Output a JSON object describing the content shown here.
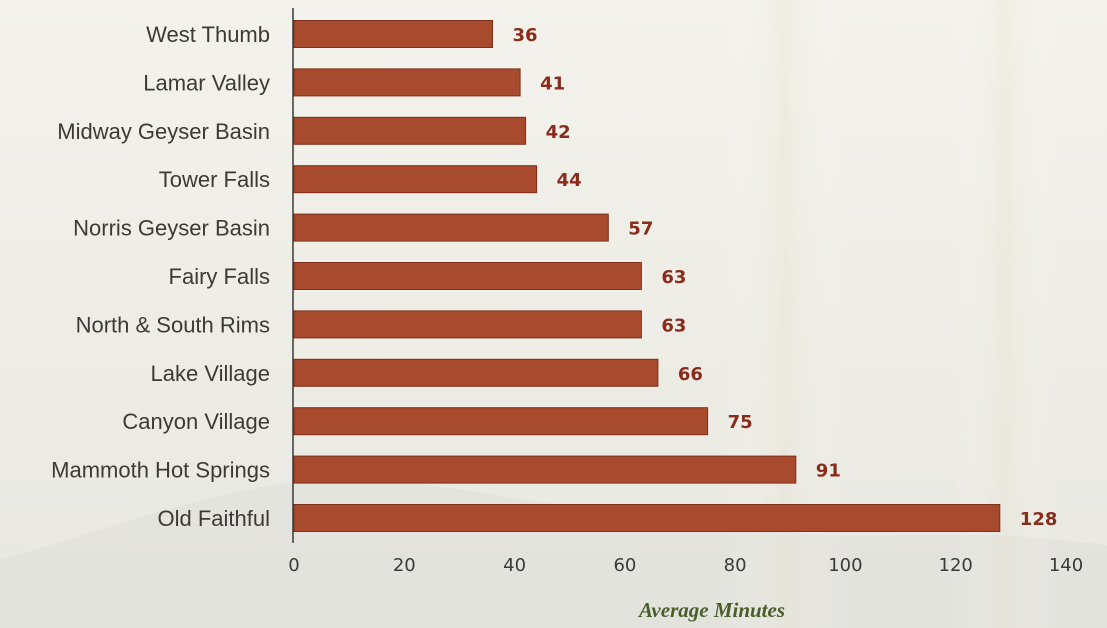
{
  "colors": {
    "bar": "#a84a2e",
    "bar_edge": "#7e3018",
    "value_label": "#8a2c1c",
    "axis_title": "#4a5e2a",
    "axis_line": "#3a3a3a"
  },
  "chart_data": {
    "type": "bar",
    "orientation": "horizontal",
    "categories": [
      "West Thumb",
      "Lamar Valley",
      "Midway Geyser Basin",
      "Tower Falls",
      "Norris Geyser Basin",
      "Fairy Falls",
      "North & South Rims",
      "Lake Village",
      "Canyon Village",
      "Mammoth Hot Springs",
      "Old Faithful"
    ],
    "values": [
      36,
      41,
      42,
      44,
      57,
      63,
      63,
      66,
      75,
      91,
      128
    ],
    "xlabel": "Average Minutes",
    "xlim": [
      0,
      140
    ],
    "xticks": [
      0,
      20,
      40,
      60,
      80,
      100,
      120,
      140
    ],
    "grid": false,
    "legend": "none"
  }
}
